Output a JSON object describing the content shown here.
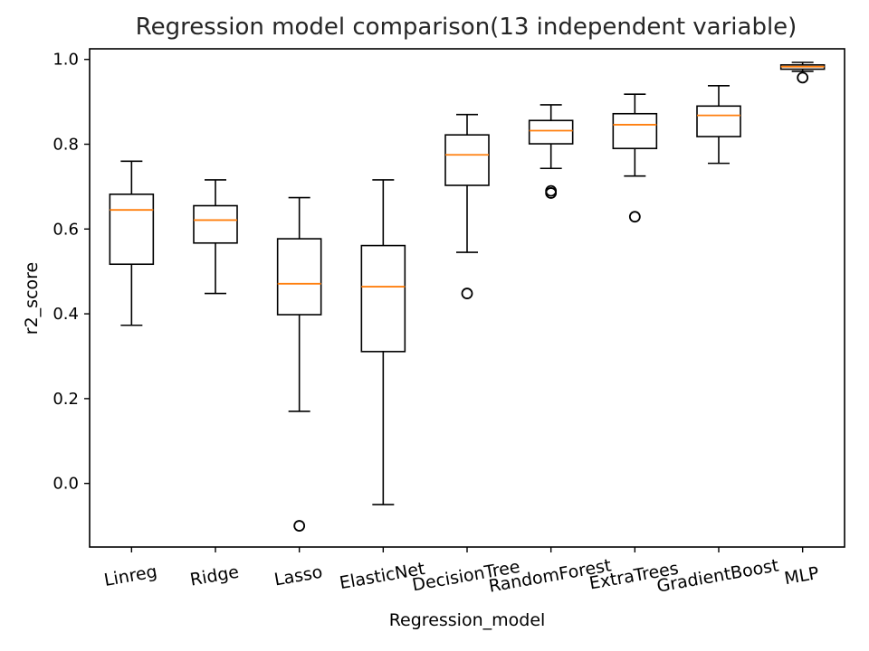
{
  "chart_data": {
    "type": "box",
    "title": "Regression model comparison(13 independent variable)",
    "xlabel": "Regression_model",
    "ylabel": "r2_score",
    "ylim": [
      -0.15,
      1.025
    ],
    "yticks": [
      "0.0",
      "0.2",
      "0.4",
      "0.6",
      "0.8",
      "1.0"
    ],
    "ytick_values": [
      0.0,
      0.2,
      0.4,
      0.6,
      0.8,
      1.0
    ],
    "grid": false,
    "colors": {
      "box": "#000000",
      "median": "#ff7f0e"
    },
    "categories": [
      "Linreg",
      "Ridge",
      "Lasso",
      "ElasticNet",
      "DecisionTree",
      "RandomForest",
      "ExtraTrees",
      "GradientBoost",
      "MLP"
    ],
    "boxes": [
      {
        "whisker_low": 0.373,
        "q1": 0.517,
        "median": 0.645,
        "q3": 0.682,
        "whisker_high": 0.76,
        "outliers": []
      },
      {
        "whisker_low": 0.448,
        "q1": 0.567,
        "median": 0.621,
        "q3": 0.655,
        "whisker_high": 0.716,
        "outliers": []
      },
      {
        "whisker_low": 0.17,
        "q1": 0.398,
        "median": 0.471,
        "q3": 0.577,
        "whisker_high": 0.674,
        "outliers": [
          -0.1
        ]
      },
      {
        "whisker_low": -0.05,
        "q1": 0.311,
        "median": 0.464,
        "q3": 0.561,
        "whisker_high": 0.716,
        "outliers": []
      },
      {
        "whisker_low": 0.545,
        "q1": 0.703,
        "median": 0.775,
        "q3": 0.822,
        "whisker_high": 0.87,
        "outliers": [
          0.448
        ]
      },
      {
        "whisker_low": 0.743,
        "q1": 0.801,
        "median": 0.832,
        "q3": 0.856,
        "whisker_high": 0.893,
        "outliers": [
          0.69,
          0.685
        ]
      },
      {
        "whisker_low": 0.725,
        "q1": 0.79,
        "median": 0.846,
        "q3": 0.872,
        "whisker_high": 0.918,
        "outliers": [
          0.629
        ]
      },
      {
        "whisker_low": 0.755,
        "q1": 0.818,
        "median": 0.868,
        "q3": 0.89,
        "whisker_high": 0.938,
        "outliers": []
      },
      {
        "whisker_low": 0.972,
        "q1": 0.977,
        "median": 0.983,
        "q3": 0.987,
        "whisker_high": 0.993,
        "outliers": [
          0.957
        ]
      }
    ]
  }
}
